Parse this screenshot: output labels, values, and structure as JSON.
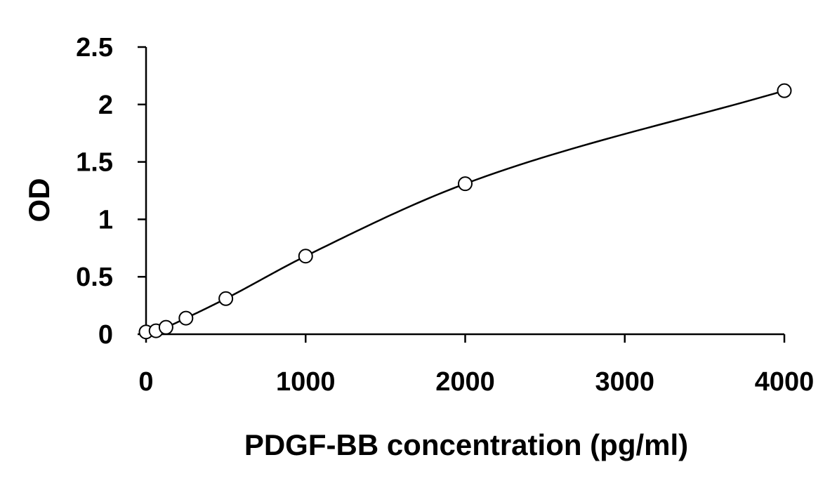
{
  "chart_data": {
    "type": "scatter",
    "title": "",
    "xlabel": "PDGF-BB concentration (pg/ml)",
    "ylabel": "OD",
    "xlim": [
      0,
      4000
    ],
    "ylim": [
      0,
      2.5
    ],
    "xticks": [
      0,
      1000,
      2000,
      3000,
      4000
    ],
    "xtick_labels": [
      "0",
      "1000",
      "2000",
      "3000",
      "4000"
    ],
    "yticks": [
      0,
      0.5,
      1,
      1.5,
      2,
      2.5
    ],
    "ytick_labels": [
      "0",
      "0.5",
      "1",
      "1.5",
      "2",
      "2.5"
    ],
    "grid": false,
    "series": [
      {
        "marker": "open-circle",
        "fit_line": "smooth-curve",
        "color": "#000000",
        "x": [
          0,
          62.5,
          125,
          250,
          500,
          1000,
          2000,
          4000
        ],
        "y": [
          0.02,
          0.03,
          0.06,
          0.14,
          0.31,
          0.68,
          1.31,
          2.12
        ]
      }
    ]
  }
}
